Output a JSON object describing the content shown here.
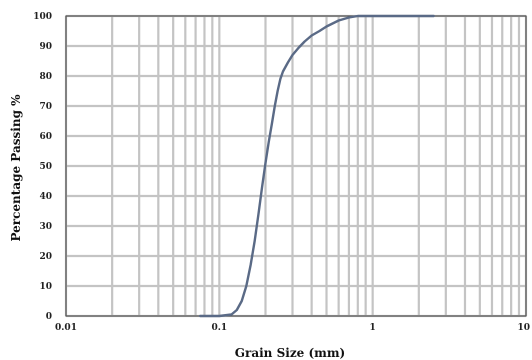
{
  "chart_data": {
    "type": "line",
    "title": "",
    "xlabel": "Grain Size (mm)",
    "ylabel": "Percentage Passing %",
    "x_scale": "log",
    "xlim": [
      0.01,
      10
    ],
    "ylim": [
      0,
      100
    ],
    "x_ticks": [
      0.01,
      0.1,
      1,
      10
    ],
    "x_tick_labels": [
      "0.01",
      "0.1",
      "1",
      "10"
    ],
    "y_ticks": [
      0,
      10,
      20,
      30,
      40,
      50,
      60,
      70,
      80,
      90,
      100
    ],
    "y_tick_labels": [
      "0",
      "10",
      "20",
      "30",
      "40",
      "50",
      "60",
      "70",
      "80",
      "90",
      "100"
    ],
    "grid": true,
    "legend": "none",
    "colors": {
      "line": "#5a6a86",
      "grid": "#c4c4c4",
      "axis": "#555555"
    },
    "series": [
      {
        "x": [
          0.075,
          0.1,
          0.12,
          0.13,
          0.14,
          0.15,
          0.16,
          0.17,
          0.18,
          0.19,
          0.2,
          0.21,
          0.22,
          0.23,
          0.24,
          0.25,
          0.26,
          0.28,
          0.3,
          0.33,
          0.36,
          0.4,
          0.45,
          0.5,
          0.6,
          0.7,
          0.8,
          1.0,
          1.5,
          2.5
        ],
        "y": [
          0,
          0,
          0.5,
          2,
          5,
          10,
          17,
          25,
          34,
          43,
          51,
          58,
          64,
          70,
          75,
          79,
          81.5,
          84.5,
          87,
          89.5,
          91.5,
          93.5,
          95,
          96.5,
          98.5,
          99.5,
          100,
          100,
          100,
          100
        ]
      }
    ]
  }
}
